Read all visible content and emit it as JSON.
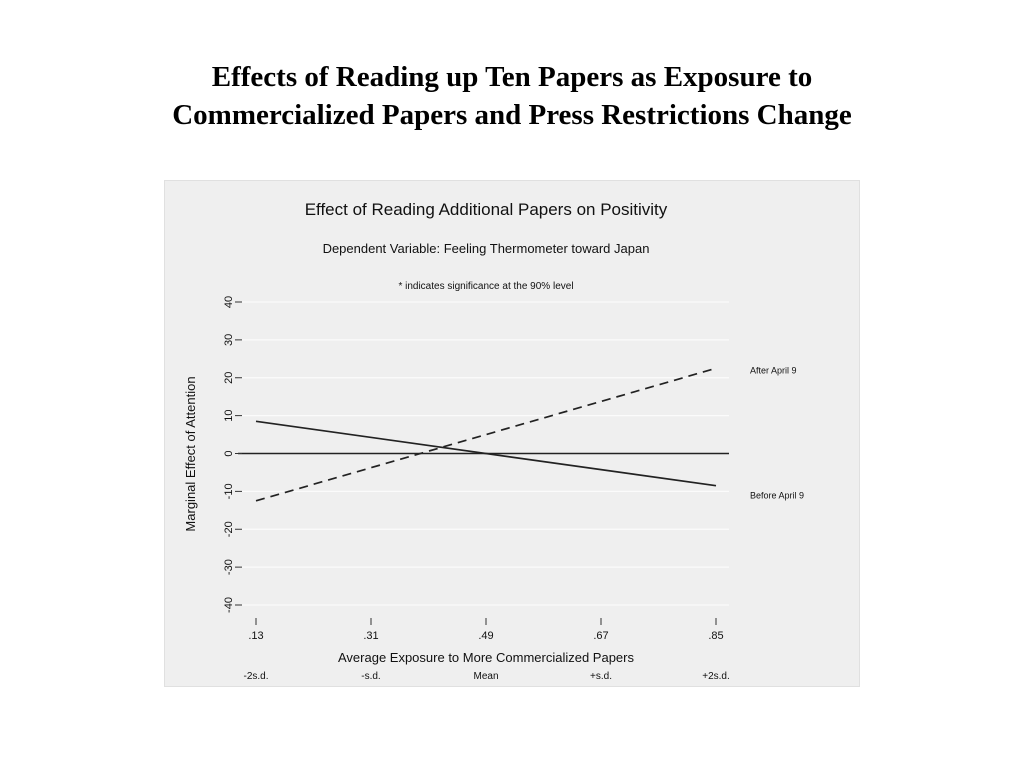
{
  "slide": {
    "title_line1": "Effects of Reading up Ten Papers as Exposure to",
    "title_line2": "Commercialized Papers and Press Restrictions Change"
  },
  "chart_data": {
    "type": "line",
    "title": "Effect of Reading Additional Papers on Positivity",
    "subtitle": "Dependent Variable: Feeling Thermometer toward Japan",
    "note": "* indicates significance at the 90% level",
    "xlabel": "Average Exposure to More Commercialized Papers",
    "ylabel": "Marginal Effect of Attention",
    "x_ticks": [
      0.13,
      0.31,
      0.49,
      0.67,
      0.85
    ],
    "x_tick_labels": [
      ".13",
      ".31",
      ".49",
      ".67",
      ".85"
    ],
    "x_sd_labels": [
      "-2s.d.",
      "-s.d.",
      "Mean",
      "+s.d.",
      "+2s.d."
    ],
    "xlim": [
      0.13,
      0.85
    ],
    "y_ticks": [
      -40,
      -30,
      -20,
      -10,
      0,
      10,
      20,
      30,
      40
    ],
    "y_tick_labels": [
      "-40",
      "-30",
      "-20",
      "-10",
      "0",
      "10",
      "20",
      "30",
      "40"
    ],
    "ylim": [
      -40,
      40
    ],
    "zero_line": true,
    "gridlines": "horizontal",
    "series": [
      {
        "name": "After April 9",
        "style": "dashed",
        "color": "#222222",
        "x": [
          0.13,
          0.85
        ],
        "y": [
          -12.5,
          22.5
        ]
      },
      {
        "name": "Before April 9",
        "style": "solid",
        "color": "#222222",
        "x": [
          0.13,
          0.85
        ],
        "y": [
          8.5,
          -8.5
        ]
      }
    ]
  }
}
